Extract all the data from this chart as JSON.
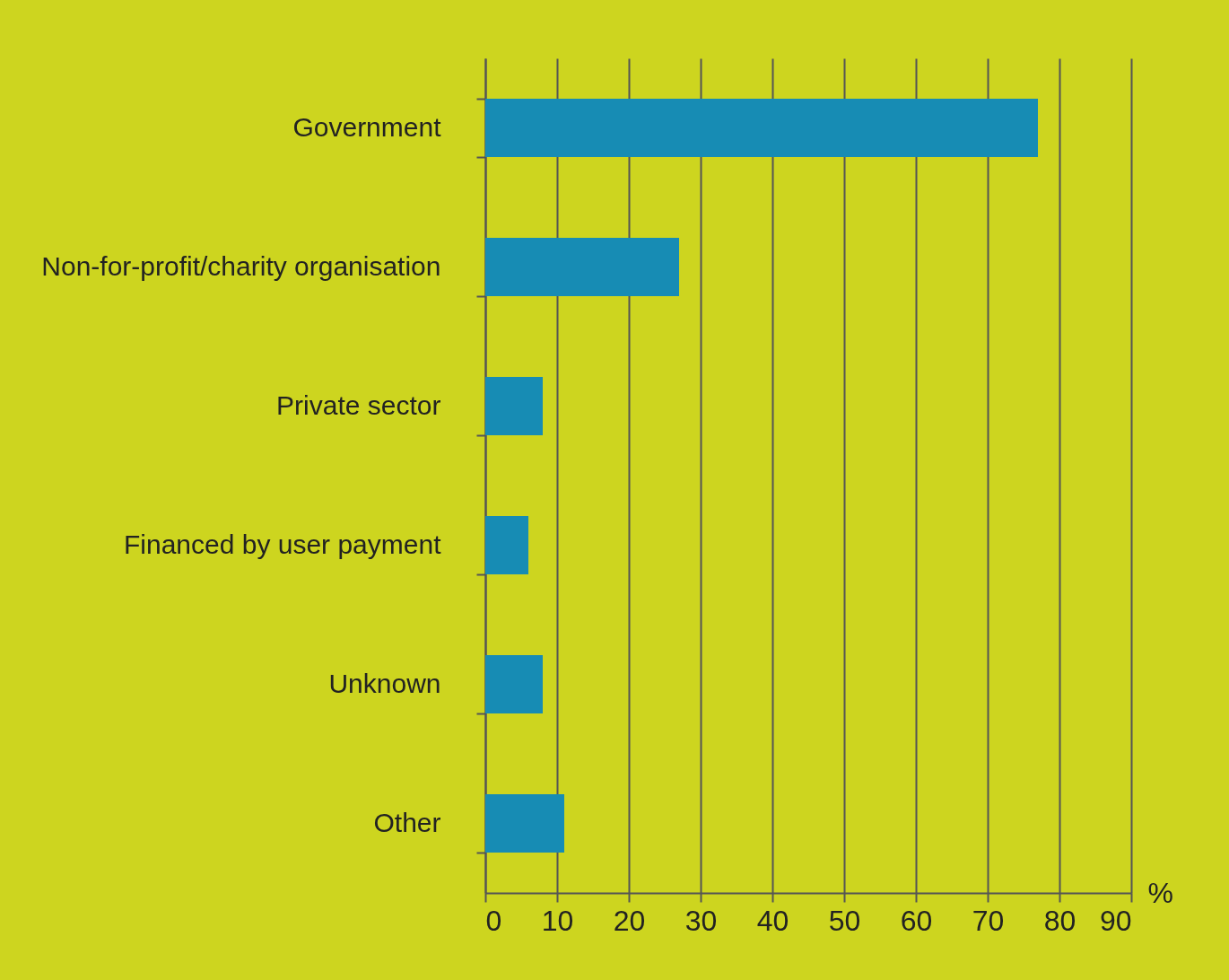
{
  "chart_data": {
    "type": "bar",
    "orientation": "horizontal",
    "xlabel": "%",
    "categories": [
      "Government",
      "Non-for-profit/charity organisation",
      "Private sector",
      "Financed by user payment",
      "Unknown",
      "Other"
    ],
    "values": [
      77,
      27,
      8,
      6,
      8,
      11
    ],
    "color": "#178cb4",
    "xlim": [
      0,
      90
    ],
    "xticks": [
      0,
      10,
      20,
      30,
      40,
      50,
      60,
      70,
      80,
      90
    ],
    "grid": "x"
  }
}
